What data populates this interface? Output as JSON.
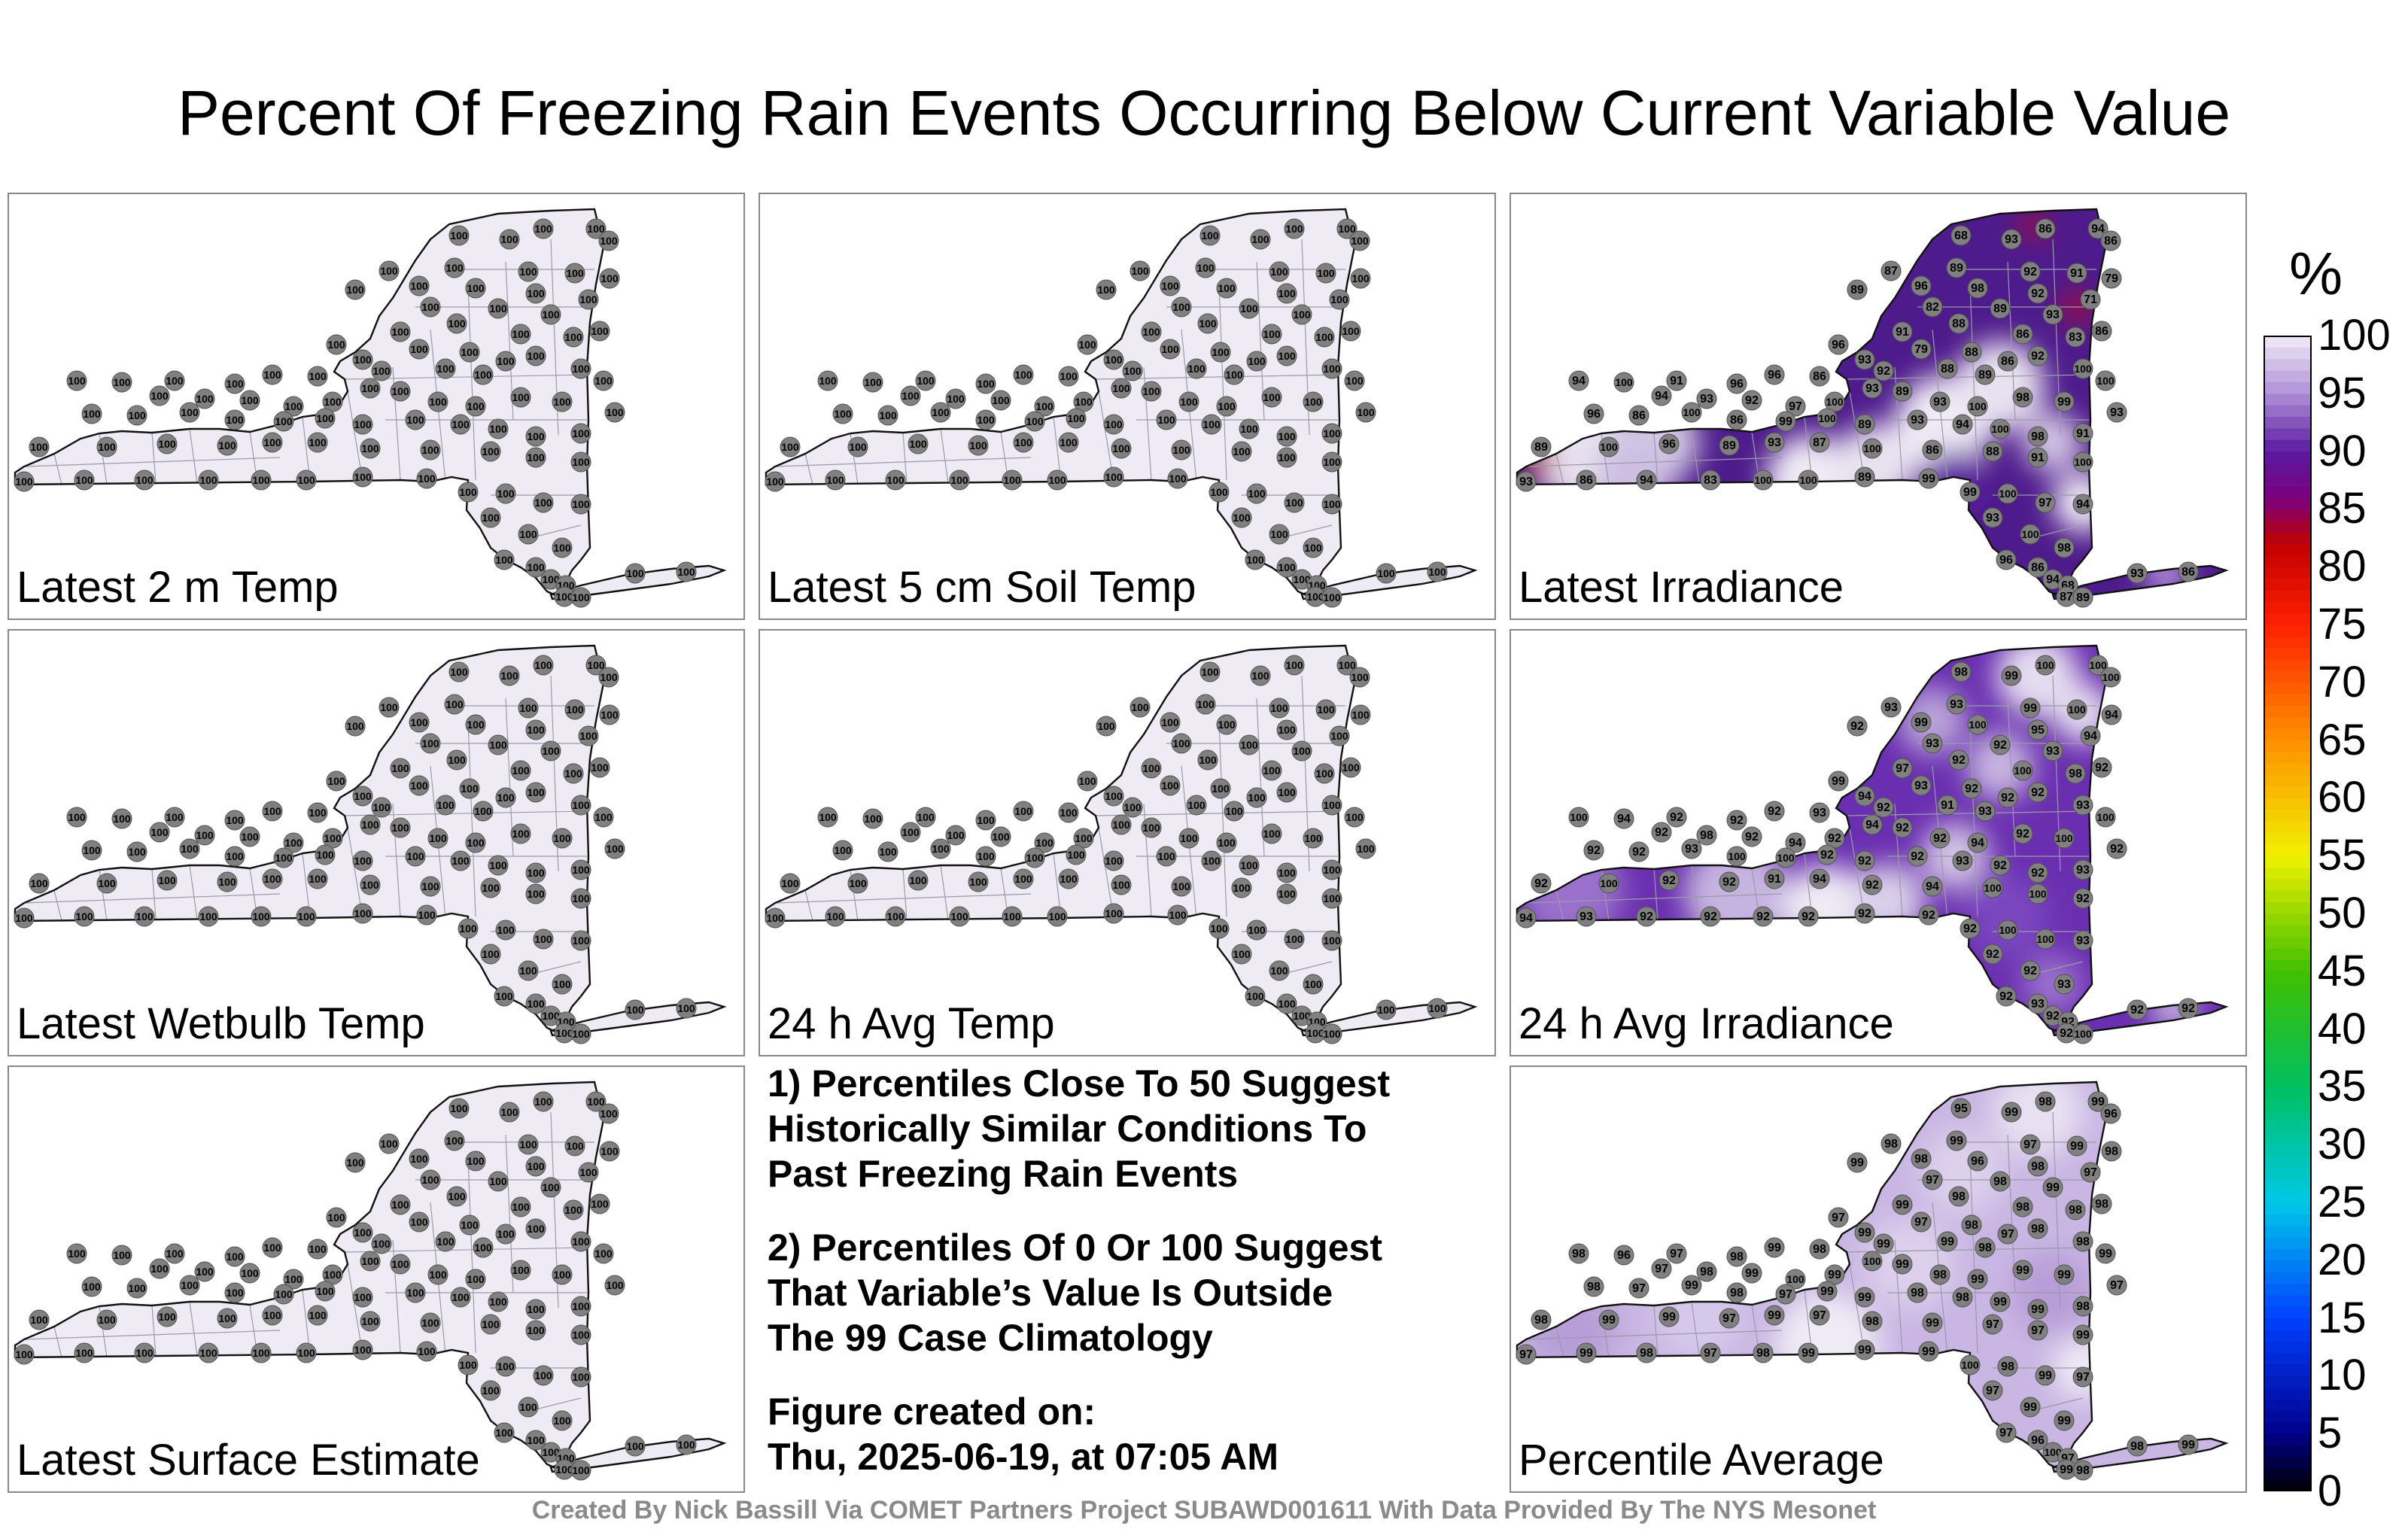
{
  "title": "Percent Of Freezing Rain Events Occurring Below Current Variable Value",
  "panels": [
    {
      "label": "Latest 2 m Temp",
      "field": "uniform"
    },
    {
      "label": "Latest 5 cm Soil Temp",
      "field": "uniform"
    },
    {
      "label": "Latest Irradiance",
      "field": "irradiance"
    },
    {
      "label": "Latest Wetbulb Temp",
      "field": "uniform"
    },
    {
      "label": "24 h Avg Temp",
      "field": "uniform"
    },
    {
      "label": "24 h Avg Irradiance",
      "field": "avg_irradiance"
    },
    {
      "label": "Latest Surface Estimate",
      "field": "uniform"
    },
    {
      "label": "Percentile Average",
      "field": "average"
    }
  ],
  "station_values": {
    "uniform": [
      "100"
    ],
    "irradiance": [
      "86",
      "94",
      "68",
      "93",
      "86",
      "87",
      "89",
      "92",
      "91",
      "79",
      "89",
      "96",
      "98",
      "92",
      "71",
      "82",
      "89",
      "93",
      "88",
      "91",
      "86",
      "83",
      "86",
      "96",
      "93",
      "92",
      "79",
      "88",
      "86",
      "92",
      "88",
      "89",
      "100",
      "94",
      "100",
      "91",
      "96",
      "96",
      "86",
      "93",
      "94",
      "93",
      "92",
      "97",
      "100",
      "89",
      "93",
      "100",
      "98",
      "99",
      "100",
      "96",
      "86",
      "100",
      "86",
      "99",
      "100",
      "89",
      "93",
      "94",
      "100",
      "98",
      "91",
      "93",
      "89",
      "100",
      "96",
      "89",
      "93",
      "87",
      "100",
      "86",
      "88",
      "91",
      "100",
      "93",
      "86",
      "94",
      "83",
      "100",
      "100",
      "89",
      "99",
      "99",
      "100",
      "97",
      "94",
      "93",
      "100",
      "98",
      "96"
    ],
    "avg_irradiance": [
      "100",
      "100",
      "98",
      "99",
      "100",
      "93",
      "93",
      "99",
      "100",
      "94",
      "92",
      "99",
      "100",
      "95",
      "94",
      "93",
      "92",
      "93",
      "92",
      "97",
      "100",
      "98",
      "92",
      "99",
      "94",
      "92",
      "93",
      "92",
      "92",
      "92",
      "91",
      "93",
      "93",
      "100",
      "94",
      "92",
      "92",
      "92",
      "93",
      "94",
      "92",
      "98",
      "92",
      "94",
      "92",
      "92",
      "92",
      "94",
      "92",
      "100",
      "100",
      "92",
      "92",
      "93",
      "100",
      "100",
      "92",
      "92",
      "92",
      "93",
      "92",
      "92",
      "93",
      "92",
      "92",
      "100",
      "92",
      "92",
      "91",
      "94",
      "92",
      "94",
      "100",
      "100",
      "92",
      "94",
      "93",
      "92",
      "92",
      "92",
      "92",
      "92",
      "92",
      "92",
      "100",
      "100",
      "93",
      "92",
      "92",
      "93",
      "92",
      "93",
      "92",
      "92",
      "92",
      "92",
      "92",
      "100",
      "100",
      "93",
      "93",
      "92",
      "92",
      "93"
    ],
    "average": [
      "98",
      "99",
      "95",
      "99",
      "96",
      "98",
      "99",
      "97",
      "99",
      "98",
      "99",
      "98",
      "96",
      "98",
      "97",
      "97",
      "98",
      "99",
      "98",
      "99",
      "98",
      "98",
      "98",
      "97",
      "99",
      "99",
      "97",
      "98",
      "97",
      "98",
      "99",
      "98",
      "98",
      "98",
      "96",
      "97",
      "98",
      "99",
      "98",
      "100",
      "97",
      "98",
      "99",
      "100",
      "99",
      "99",
      "98",
      "99",
      "99",
      "99",
      "99",
      "98",
      "97",
      "99",
      "98",
      "97",
      "99",
      "99",
      "98",
      "98",
      "99",
      "99",
      "98",
      "97",
      "98",
      "99",
      "99",
      "97",
      "99",
      "97",
      "98",
      "99",
      "97",
      "97",
      "99",
      "97",
      "99",
      "98",
      "97",
      "98",
      "99",
      "99",
      "99",
      "100",
      "98",
      "99",
      "97",
      "97",
      "99",
      "99",
      "97",
      "96",
      "100",
      "97",
      "98",
      "99",
      "99",
      "98",
      "98",
      "99",
      "97",
      "99",
      "99",
      "98",
      "98"
    ]
  },
  "notes": [
    [
      "1) Percentiles Close To 50 Suggest",
      "Historically Similar Conditions To",
      "Past Freezing Rain Events"
    ],
    [
      "2) Percentiles Of 0 Or 100 Suggest",
      "That Variable’s Value Is Outside",
      "The 99 Case Climatology"
    ],
    [
      "Figure created on:",
      "Thu, 2025-06-19, at 07:05 AM"
    ]
  ],
  "footer": "Created By Nick Bassill Via COMET Partners Project SUBAWD001611 With Data Provided By The NYS Mesonet",
  "colorbar": {
    "unit": "%",
    "min": 0,
    "max": 100,
    "ticks": [
      "100",
      "95",
      "90",
      "85",
      "80",
      "75",
      "70",
      "65",
      "60",
      "55",
      "50",
      "45",
      "40",
      "35",
      "30",
      "25",
      "20",
      "15",
      "10",
      "5",
      "0"
    ],
    "stops": [
      {
        "v": 0,
        "c": "#000000"
      },
      {
        "v": 5,
        "c": "#00008b"
      },
      {
        "v": 15,
        "c": "#0040ff"
      },
      {
        "v": 25,
        "c": "#00c8e8"
      },
      {
        "v": 35,
        "c": "#00c060"
      },
      {
        "v": 45,
        "c": "#40c000"
      },
      {
        "v": 55,
        "c": "#f0f000"
      },
      {
        "v": 65,
        "c": "#ff9000"
      },
      {
        "v": 75,
        "c": "#ff2000"
      },
      {
        "v": 82,
        "c": "#c00000"
      },
      {
        "v": 86,
        "c": "#7a0080"
      },
      {
        "v": 90,
        "c": "#5a1aa0"
      },
      {
        "v": 95,
        "c": "#b090d8"
      },
      {
        "v": 100,
        "c": "#f0ecf6"
      }
    ]
  }
}
